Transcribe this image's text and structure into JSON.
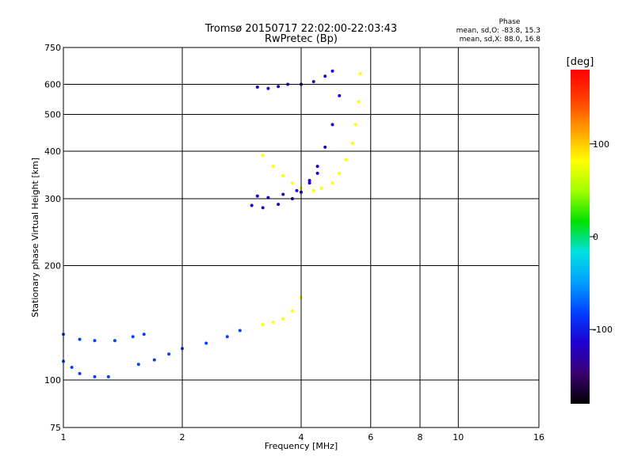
{
  "chart_data": {
    "type": "scatter",
    "title": "Tromsø 20150717 22:02:00-22:03:43",
    "subtitle": "RwPretec (Bp)",
    "xlabel": "Frequency [MHz]",
    "ylabel": "Stationary phase Virtual Height [km]",
    "x_scale": "log",
    "y_scale": "log",
    "xlim": [
      1,
      16
    ],
    "ylim": [
      75,
      750
    ],
    "x_ticks": [
      1,
      2,
      4,
      6,
      8,
      10,
      16
    ],
    "y_ticks": [
      75,
      100,
      200,
      300,
      400,
      500,
      600,
      750
    ],
    "grid": true,
    "phase_info": {
      "title": "Phase",
      "line_o": "mean, sd,O: -83.8, 15.3",
      "line_x": "mean, sd,X: 88.0, 16.8"
    },
    "colorbar": {
      "label": "[deg]",
      "range": [
        -180,
        180
      ],
      "ticks": [
        100,
        0,
        -100
      ],
      "colors": [
        "#000000",
        "#3a0070",
        "#2000d0",
        "#0040ff",
        "#00a0ff",
        "#00e0e0",
        "#00e000",
        "#a0ff00",
        "#ffff00",
        "#ffa000",
        "#ff4000",
        "#ff0000"
      ]
    },
    "series": [
      {
        "name": "O",
        "traces": [
          {
            "f": [
              1.0,
              1.1,
              1.2,
              1.35,
              1.5,
              1.6
            ],
            "h": [
              132,
              128,
              127,
              127,
              130,
              132
            ],
            "phase": -95
          },
          {
            "f": [
              1.0,
              1.05,
              1.1,
              1.2,
              1.3
            ],
            "h": [
              112,
              108,
              104,
              102,
              102
            ],
            "phase": -85
          },
          {
            "f": [
              1.55,
              1.7,
              1.85,
              2.0,
              2.3,
              2.6,
              2.8
            ],
            "h": [
              110,
              113,
              117,
              121,
              125,
              130,
              135
            ],
            "phase": -92
          },
          {
            "f": [
              3.0,
              3.2,
              3.5,
              3.8,
              4.0,
              4.2,
              4.4,
              4.6,
              4.8,
              5.0
            ],
            "h": [
              288,
              284,
              290,
              300,
              312,
              335,
              365,
              410,
              470,
              560
            ],
            "phase": -110
          },
          {
            "f": [
              3.1,
              3.3,
              3.6,
              3.9,
              4.2,
              4.4
            ],
            "h": [
              305,
              302,
              308,
              315,
              330,
              350
            ],
            "phase": -115
          },
          {
            "f": [
              3.1,
              3.3,
              3.5,
              3.7
            ],
            "h": [
              590,
              585,
              592,
              600
            ],
            "phase": -105
          },
          {
            "f": [
              4.0,
              4.3,
              4.6,
              4.8
            ],
            "h": [
              600,
              610,
              630,
              650
            ],
            "phase": -100
          }
        ]
      },
      {
        "name": "X",
        "traces": [
          {
            "f": [
              3.2,
              3.4,
              3.6,
              3.8,
              4.0
            ],
            "h": [
              140,
              142,
              145,
              152,
              165
            ],
            "phase": 90
          },
          {
            "f": [
              4.5,
              4.8,
              5.0,
              5.2,
              5.4,
              5.5,
              5.6,
              5.65
            ],
            "h": [
              320,
              330,
              350,
              380,
              420,
              470,
              540,
              640
            ],
            "phase": 95
          },
          {
            "f": [
              3.2,
              3.4,
              3.6,
              3.8,
              4.0,
              4.3
            ],
            "h": [
              390,
              365,
              345,
              330,
              320,
              315
            ],
            "phase": 85
          }
        ]
      }
    ]
  }
}
